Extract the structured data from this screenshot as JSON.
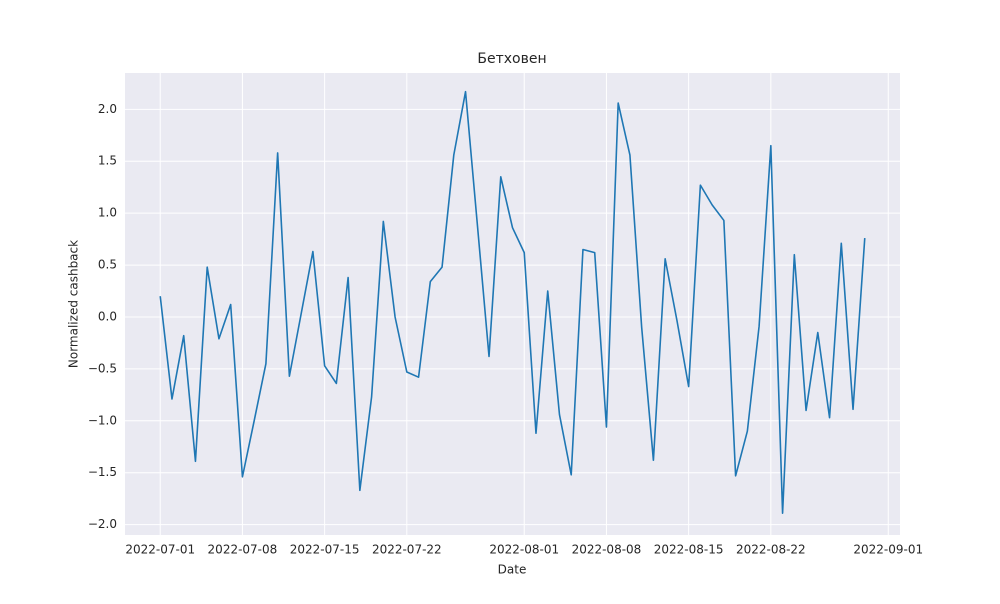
{
  "chart_data": {
    "type": "line",
    "title": "Бетховен",
    "xlabel": "Date",
    "ylabel": "Normalized cashback",
    "x": [
      "2022-07-01",
      "2022-07-02",
      "2022-07-03",
      "2022-07-04",
      "2022-07-05",
      "2022-07-06",
      "2022-07-07",
      "2022-07-08",
      "2022-07-09",
      "2022-07-10",
      "2022-07-11",
      "2022-07-12",
      "2022-07-13",
      "2022-07-14",
      "2022-07-15",
      "2022-07-16",
      "2022-07-17",
      "2022-07-18",
      "2022-07-19",
      "2022-07-20",
      "2022-07-21",
      "2022-07-22",
      "2022-07-23",
      "2022-07-24",
      "2022-07-25",
      "2022-07-26",
      "2022-07-27",
      "2022-07-28",
      "2022-07-29",
      "2022-07-30",
      "2022-07-31",
      "2022-08-01",
      "2022-08-02",
      "2022-08-03",
      "2022-08-04",
      "2022-08-05",
      "2022-08-06",
      "2022-08-07",
      "2022-08-08",
      "2022-08-09",
      "2022-08-10",
      "2022-08-11",
      "2022-08-12",
      "2022-08-13",
      "2022-08-14",
      "2022-08-15",
      "2022-08-16",
      "2022-08-17",
      "2022-08-18",
      "2022-08-19",
      "2022-08-20",
      "2022-08-21",
      "2022-08-22",
      "2022-08-23",
      "2022-08-24",
      "2022-08-25",
      "2022-08-26",
      "2022-08-27",
      "2022-08-28",
      "2022-08-29",
      "2022-08-30"
    ],
    "series": [
      {
        "name": "cashback",
        "color": "#1f77b4",
        "values": [
          0.2,
          -0.79,
          -0.18,
          -1.39,
          0.48,
          -0.21,
          0.12,
          -1.54,
          -1.0,
          -0.45,
          1.58,
          -0.57,
          0.03,
          0.63,
          -0.47,
          -0.64,
          0.38,
          -1.67,
          -0.77,
          0.92,
          0.0,
          -0.53,
          -0.58,
          0.34,
          0.48,
          1.56,
          2.17,
          0.9,
          -0.38,
          1.35,
          0.86,
          0.62,
          -1.12,
          0.25,
          -0.94,
          -1.52,
          0.65,
          0.62,
          -1.06,
          2.06,
          1.56,
          -0.1,
          -1.38,
          0.56,
          -0.03,
          -0.67,
          1.27,
          1.08,
          0.93,
          -1.53,
          -1.1,
          -0.09,
          1.65,
          -1.89,
          0.6,
          -0.9,
          -0.15,
          -0.97,
          0.71,
          -0.89,
          0.76
        ]
      }
    ],
    "xlim": [
      "2022-06-28",
      "2022-09-02"
    ],
    "xticks": [
      "2022-07-01",
      "2022-07-08",
      "2022-07-15",
      "2022-07-22",
      "2022-08-01",
      "2022-08-08",
      "2022-08-15",
      "2022-08-22",
      "2022-09-01"
    ],
    "ylim": [
      -2.1,
      2.35
    ],
    "yticks": [
      {
        "value": -2,
        "label": "−2.0"
      },
      {
        "value": -1.5,
        "label": "−1.5"
      },
      {
        "value": -1,
        "label": "−1.0"
      },
      {
        "value": -0.5,
        "label": "−0.5"
      },
      {
        "value": 0,
        "label": "0.0"
      },
      {
        "value": 0.5,
        "label": "0.5"
      },
      {
        "value": 1,
        "label": "1.0"
      },
      {
        "value": 1.5,
        "label": "1.5"
      },
      {
        "value": 2,
        "label": "2.0"
      }
    ],
    "grid": true
  }
}
